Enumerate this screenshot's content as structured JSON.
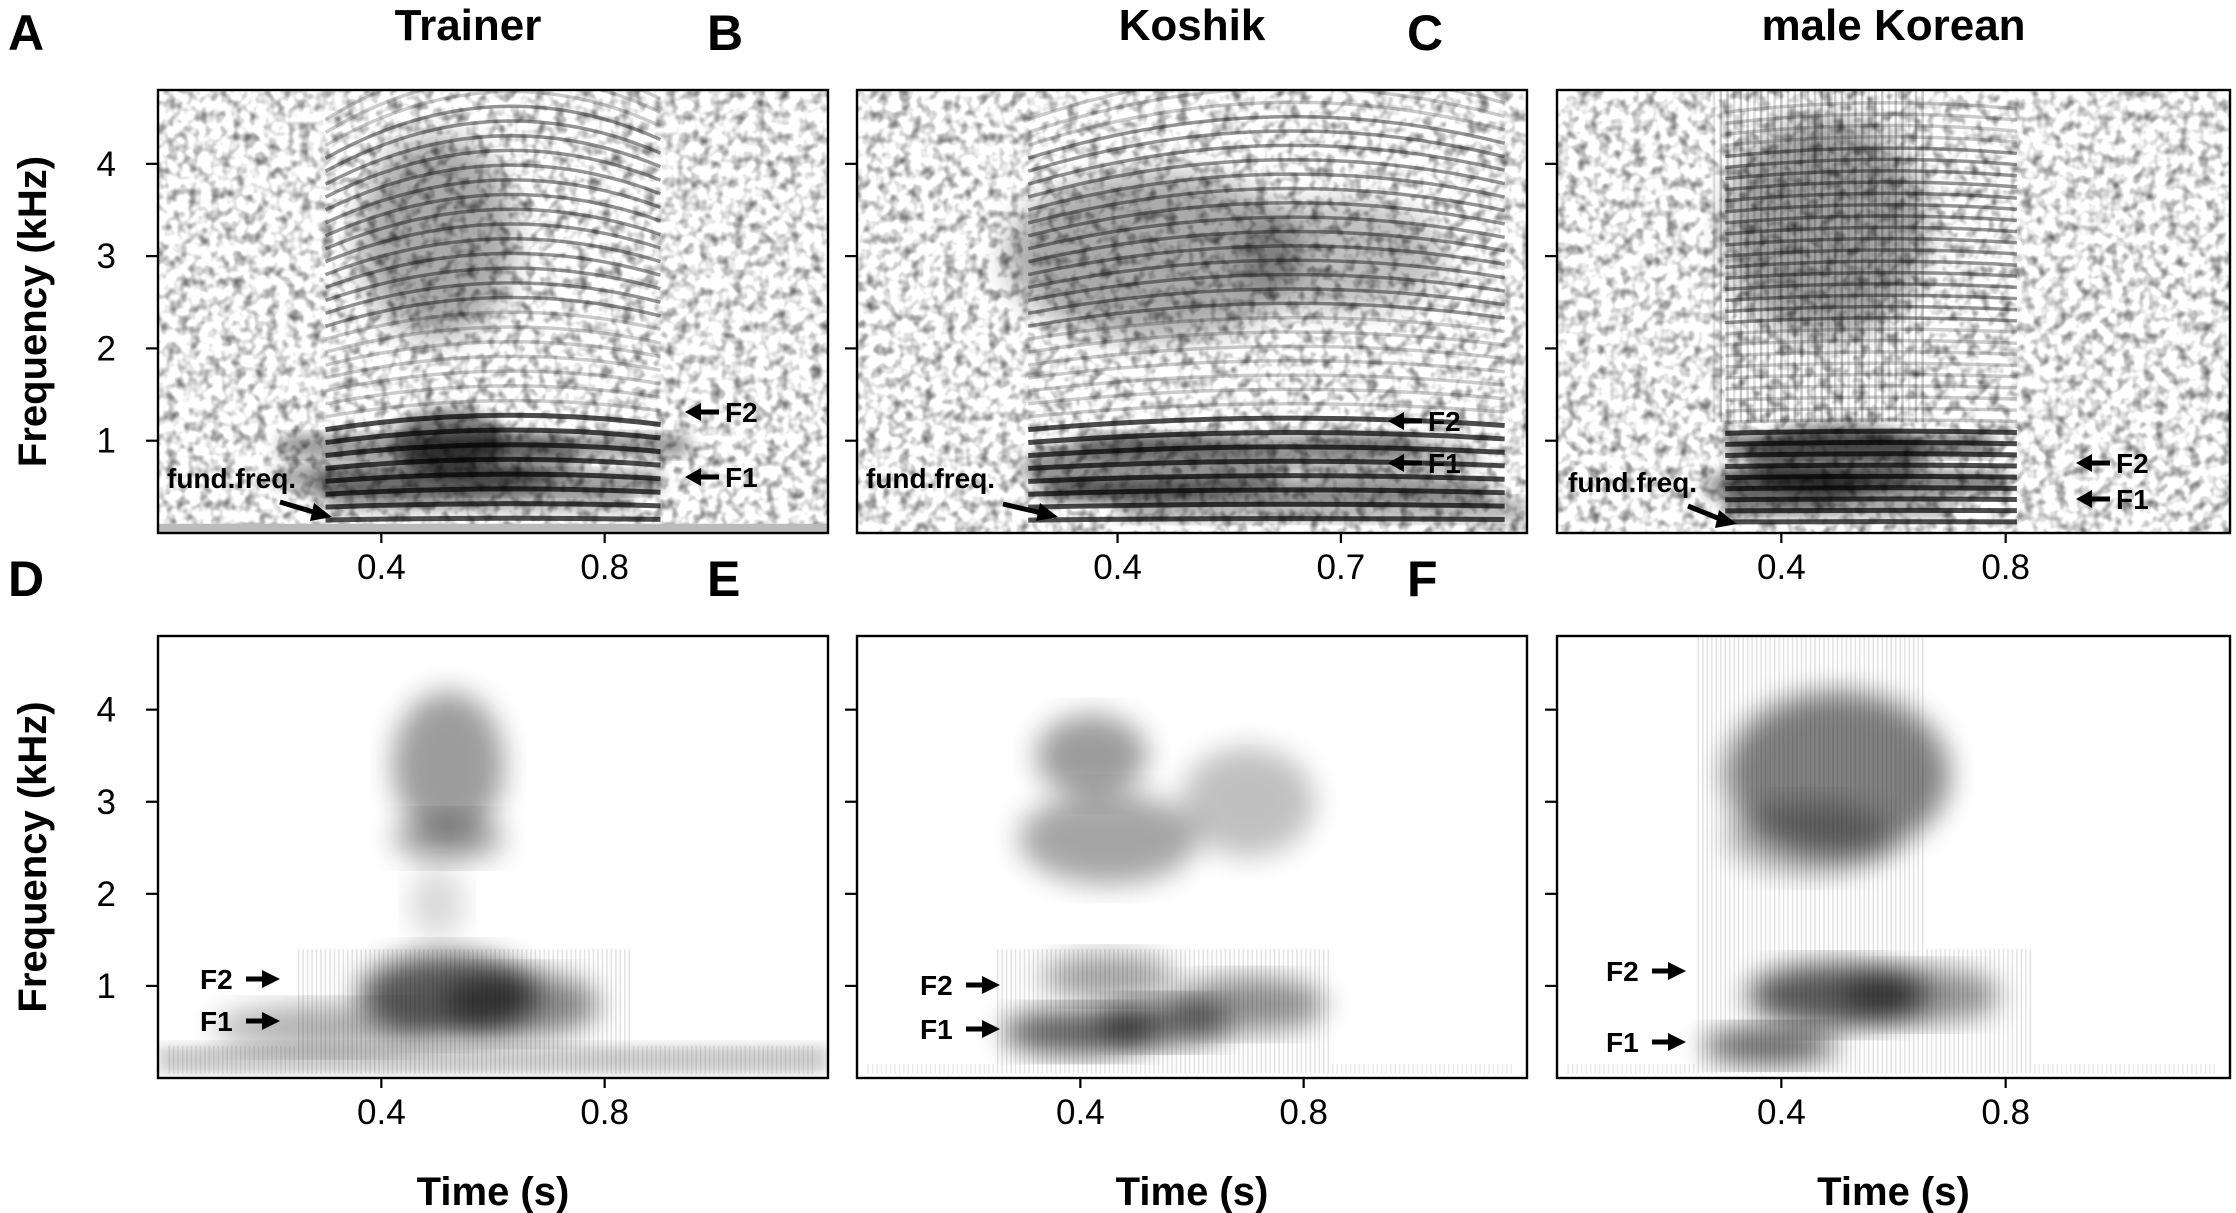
{
  "figure": {
    "panels": [
      {
        "letter": "A",
        "title": "Trainer",
        "x_ticks": [
          {
            "v": 0.4,
            "label": "0.4"
          },
          {
            "v": 0.8,
            "label": "0.8"
          }
        ],
        "xlim": [
          0,
          1.2
        ],
        "variant": "narrowband",
        "energy": "trainer",
        "show_ylabel": true,
        "show_xlabel": false,
        "annotations": {
          "fund_freq": "fund.freq.",
          "f2": "F2",
          "f1": "F1"
        }
      },
      {
        "letter": "B",
        "title": "Koshik",
        "x_ticks": [
          {
            "v": 0.4,
            "label": "0.4"
          },
          {
            "v": 0.7,
            "label": "0.7"
          }
        ],
        "xlim": [
          0.05,
          0.95
        ],
        "variant": "narrowband",
        "energy": "koshik",
        "show_ylabel": false,
        "show_xlabel": false,
        "annotations": {
          "fund_freq": "fund.freq.",
          "f2": "F2",
          "f1": "F1"
        }
      },
      {
        "letter": "C",
        "title": "male Korean",
        "x_ticks": [
          {
            "v": 0.4,
            "label": "0.4"
          },
          {
            "v": 0.8,
            "label": "0.8"
          }
        ],
        "xlim": [
          0,
          1.2
        ],
        "variant": "narrowband",
        "energy": "korean",
        "show_ylabel": false,
        "show_xlabel": false,
        "annotations": {
          "fund_freq": "fund.freq.",
          "f2": "F2",
          "f1": "F1"
        }
      },
      {
        "letter": "D",
        "title": "",
        "x_ticks": [
          {
            "v": 0.4,
            "label": "0.4"
          },
          {
            "v": 0.8,
            "label": "0.8"
          }
        ],
        "xlim": [
          0,
          1.2
        ],
        "variant": "wideband",
        "energy": "trainer",
        "show_ylabel": true,
        "show_xlabel": true,
        "annotations": {
          "f2": "F2",
          "f1": "F1"
        }
      },
      {
        "letter": "E",
        "title": "",
        "x_ticks": [
          {
            "v": 0.4,
            "label": "0.4"
          },
          {
            "v": 0.8,
            "label": "0.8"
          }
        ],
        "xlim": [
          0,
          1.2
        ],
        "variant": "wideband",
        "energy": "koshik",
        "show_ylabel": false,
        "show_xlabel": true,
        "annotations": {
          "f2": "F2",
          "f1": "F1"
        }
      },
      {
        "letter": "F",
        "title": "",
        "x_ticks": [
          {
            "v": 0.4,
            "label": "0.4"
          },
          {
            "v": 0.8,
            "label": "0.8"
          }
        ],
        "xlim": [
          0,
          1.2
        ],
        "variant": "wideband",
        "energy": "korean",
        "show_ylabel": false,
        "show_xlabel": true,
        "annotations": {
          "f2": "F2",
          "f1": "F1"
        }
      }
    ],
    "y_axis": {
      "label": "Frequency (kHz)",
      "ylim": [
        0,
        4.8
      ],
      "ticks": [
        {
          "v": 1,
          "label": "1"
        },
        {
          "v": 2,
          "label": "2"
        },
        {
          "v": 3,
          "label": "3"
        },
        {
          "v": 4,
          "label": "4"
        }
      ]
    },
    "x_axis": {
      "label": "Time (s)"
    }
  }
}
